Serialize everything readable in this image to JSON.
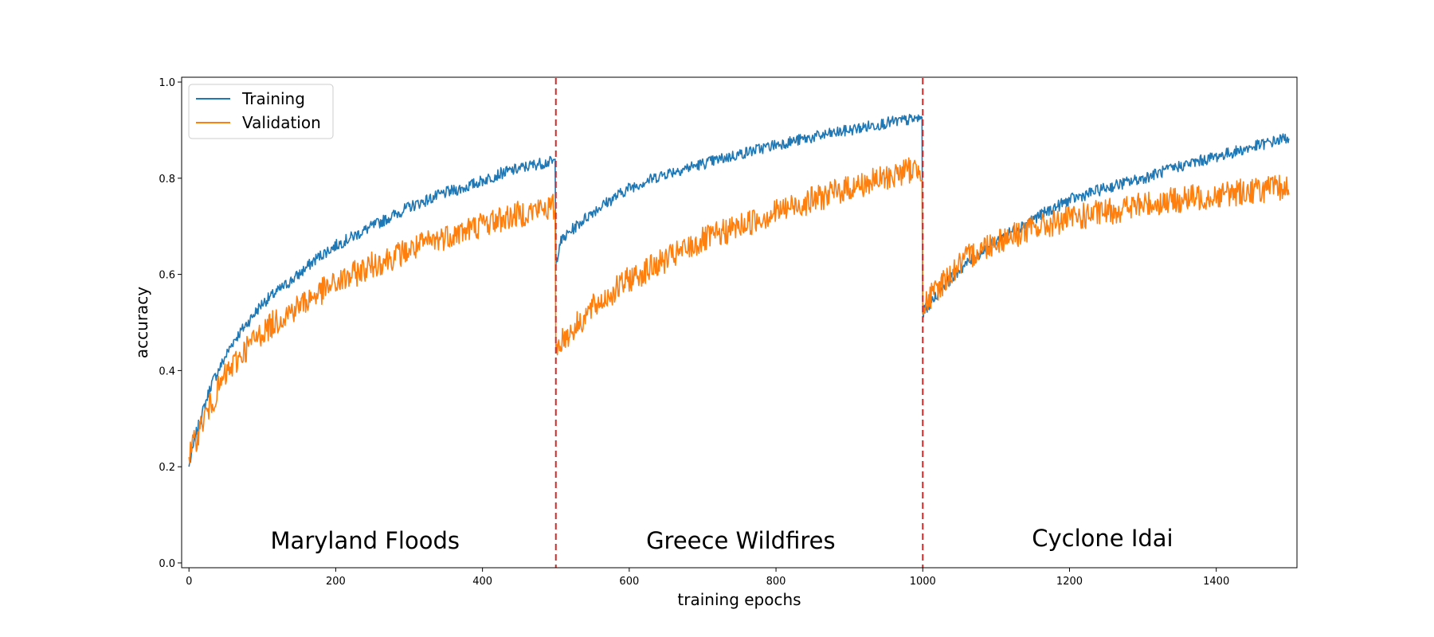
{
  "chart_data": {
    "type": "line",
    "title": "",
    "xlabel": "training epochs",
    "ylabel": "accuracy",
    "xlim": [
      -10,
      1510
    ],
    "ylim": [
      -0.01,
      1.01
    ],
    "xticks": [
      0,
      200,
      400,
      600,
      800,
      1000,
      1200,
      1400
    ],
    "xtick_labels": [
      "0",
      "200",
      "400",
      "600",
      "800",
      "1000",
      "1200",
      "1400"
    ],
    "yticks": [
      0.0,
      0.2,
      0.4,
      0.6,
      0.8,
      1.0
    ],
    "ytick_labels": [
      "0.0",
      "0.2",
      "0.4",
      "0.6",
      "0.8",
      "1.0"
    ],
    "grid": false,
    "legend": {
      "placement": "top-left",
      "entries": [
        {
          "label": "Training",
          "color": "#1f77b4"
        },
        {
          "label": "Validation",
          "color": "#ff7f0e"
        }
      ]
    },
    "vlines": {
      "x": [
        500,
        1000
      ],
      "color": "#d62728",
      "style": "dashed"
    },
    "region_labels": [
      {
        "text": "Maryland Floods",
        "x": 240,
        "y": 0.03
      },
      {
        "text": "Greece Wildfires",
        "x": 752,
        "y": 0.03
      },
      {
        "text": "Cyclone Idai",
        "x": 1245,
        "y": 0.035
      }
    ],
    "series": [
      {
        "name": "Training",
        "color": "#1f77b4",
        "points": [
          [
            0,
            0.2
          ],
          [
            10,
            0.27
          ],
          [
            20,
            0.32
          ],
          [
            30,
            0.37
          ],
          [
            40,
            0.4
          ],
          [
            50,
            0.43
          ],
          [
            60,
            0.46
          ],
          [
            80,
            0.5
          ],
          [
            100,
            0.54
          ],
          [
            125,
            0.57
          ],
          [
            150,
            0.6
          ],
          [
            175,
            0.635
          ],
          [
            200,
            0.66
          ],
          [
            225,
            0.68
          ],
          [
            250,
            0.7
          ],
          [
            275,
            0.72
          ],
          [
            300,
            0.74
          ],
          [
            325,
            0.755
          ],
          [
            350,
            0.77
          ],
          [
            375,
            0.78
          ],
          [
            400,
            0.795
          ],
          [
            425,
            0.81
          ],
          [
            450,
            0.82
          ],
          [
            475,
            0.83
          ],
          [
            499,
            0.835
          ],
          [
            500,
            0.62
          ],
          [
            505,
            0.665
          ],
          [
            520,
            0.69
          ],
          [
            550,
            0.73
          ],
          [
            575,
            0.755
          ],
          [
            600,
            0.78
          ],
          [
            625,
            0.795
          ],
          [
            650,
            0.81
          ],
          [
            700,
            0.83
          ],
          [
            750,
            0.85
          ],
          [
            800,
            0.87
          ],
          [
            850,
            0.885
          ],
          [
            900,
            0.9
          ],
          [
            950,
            0.915
          ],
          [
            975,
            0.92
          ],
          [
            999,
            0.925
          ],
          [
            1000,
            0.52
          ],
          [
            1010,
            0.54
          ],
          [
            1025,
            0.57
          ],
          [
            1050,
            0.61
          ],
          [
            1075,
            0.64
          ],
          [
            1100,
            0.67
          ],
          [
            1150,
            0.715
          ],
          [
            1200,
            0.755
          ],
          [
            1250,
            0.78
          ],
          [
            1300,
            0.8
          ],
          [
            1350,
            0.825
          ],
          [
            1400,
            0.845
          ],
          [
            1450,
            0.865
          ],
          [
            1499,
            0.885
          ]
        ]
      },
      {
        "name": "Validation",
        "color": "#ff7f0e",
        "points": [
          [
            0,
            0.22
          ],
          [
            10,
            0.26
          ],
          [
            20,
            0.3
          ],
          [
            30,
            0.33
          ],
          [
            40,
            0.36
          ],
          [
            50,
            0.39
          ],
          [
            60,
            0.41
          ],
          [
            80,
            0.45
          ],
          [
            100,
            0.48
          ],
          [
            125,
            0.51
          ],
          [
            150,
            0.535
          ],
          [
            175,
            0.56
          ],
          [
            200,
            0.58
          ],
          [
            225,
            0.6
          ],
          [
            250,
            0.62
          ],
          [
            275,
            0.635
          ],
          [
            300,
            0.65
          ],
          [
            325,
            0.665
          ],
          [
            350,
            0.68
          ],
          [
            375,
            0.69
          ],
          [
            400,
            0.705
          ],
          [
            425,
            0.715
          ],
          [
            450,
            0.725
          ],
          [
            475,
            0.735
          ],
          [
            499,
            0.74
          ],
          [
            500,
            0.44
          ],
          [
            505,
            0.46
          ],
          [
            520,
            0.48
          ],
          [
            550,
            0.53
          ],
          [
            575,
            0.56
          ],
          [
            600,
            0.59
          ],
          [
            625,
            0.61
          ],
          [
            650,
            0.63
          ],
          [
            700,
            0.67
          ],
          [
            750,
            0.7
          ],
          [
            800,
            0.73
          ],
          [
            850,
            0.755
          ],
          [
            900,
            0.78
          ],
          [
            950,
            0.8
          ],
          [
            975,
            0.815
          ],
          [
            999,
            0.82
          ],
          [
            1000,
            0.53
          ],
          [
            1010,
            0.55
          ],
          [
            1025,
            0.58
          ],
          [
            1050,
            0.62
          ],
          [
            1075,
            0.65
          ],
          [
            1100,
            0.67
          ],
          [
            1150,
            0.695
          ],
          [
            1200,
            0.715
          ],
          [
            1250,
            0.73
          ],
          [
            1300,
            0.745
          ],
          [
            1350,
            0.755
          ],
          [
            1400,
            0.765
          ],
          [
            1450,
            0.775
          ],
          [
            1499,
            0.78
          ]
        ]
      }
    ]
  }
}
